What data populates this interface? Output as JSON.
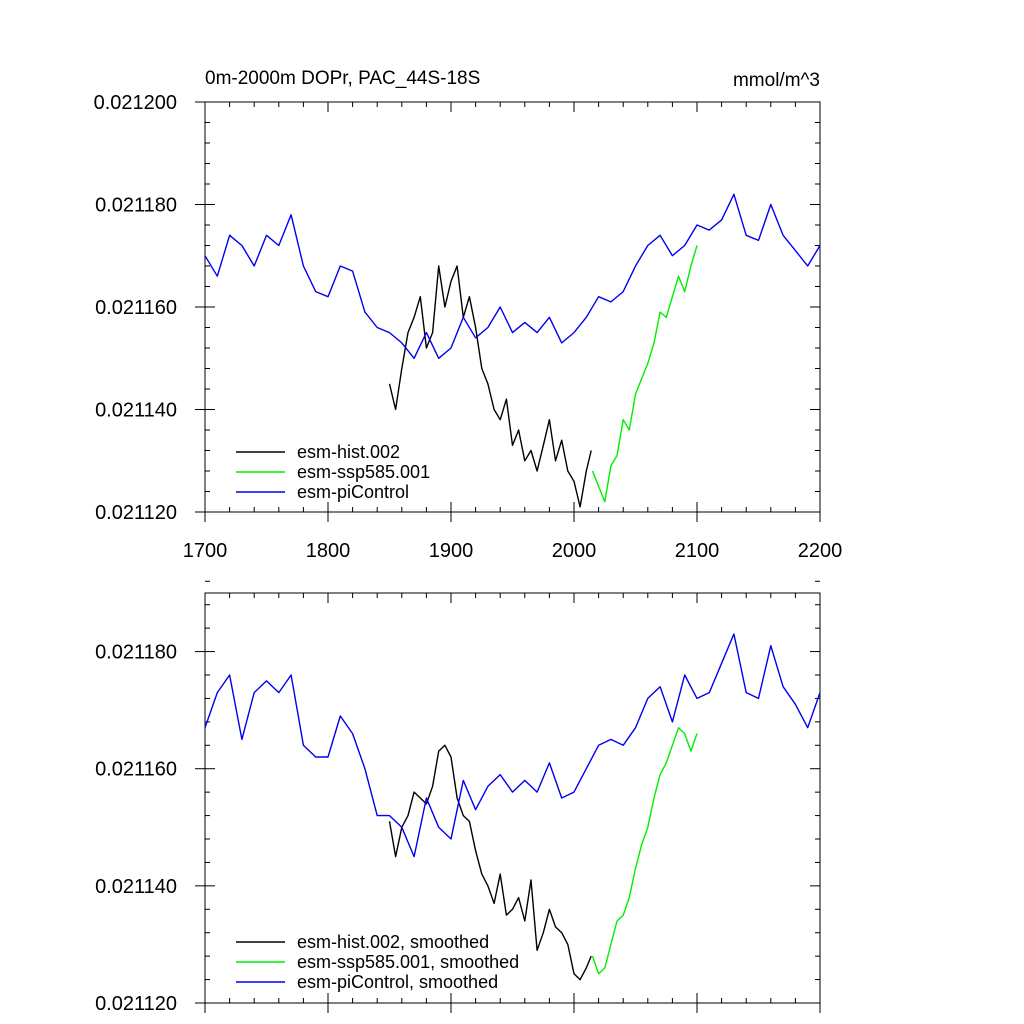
{
  "chart_data": [
    {
      "type": "line",
      "title": "0m-2000m DOPr, PAC_44S-18S",
      "units": "mmol/m^3",
      "xlim": [
        1700,
        2200
      ],
      "ylim": [
        0.02112,
        0.0212
      ],
      "x_ticks": [
        "1700",
        "1800",
        "1900",
        "2000",
        "2100",
        "2200"
      ],
      "y_ticks": [
        "0.021120",
        "0.021140",
        "0.021160",
        "0.021180",
        "0.021200"
      ],
      "grid": false,
      "legend_position": "bottom-left",
      "series": [
        {
          "name": "esm-hist.002",
          "color": "#000000",
          "x": [
            1850,
            1855,
            1860,
            1865,
            1870,
            1875,
            1880,
            1885,
            1890,
            1895,
            1900,
            1905,
            1910,
            1915,
            1920,
            1925,
            1930,
            1935,
            1940,
            1945,
            1950,
            1955,
            1960,
            1965,
            1970,
            1975,
            1980,
            1985,
            1990,
            1995,
            2000,
            2005,
            2010,
            2014
          ],
          "y": [
            0.021145,
            0.02114,
            0.021148,
            0.021155,
            0.021158,
            0.021162,
            0.021152,
            0.021155,
            0.021168,
            0.02116,
            0.021165,
            0.021168,
            0.021158,
            0.021162,
            0.021156,
            0.021148,
            0.021145,
            0.02114,
            0.021138,
            0.021142,
            0.021133,
            0.021136,
            0.02113,
            0.021132,
            0.021128,
            0.021133,
            0.021138,
            0.02113,
            0.021134,
            0.021128,
            0.021126,
            0.021121,
            0.021128,
            0.021132
          ]
        },
        {
          "name": "esm-ssp585.001",
          "color": "#00ee00",
          "x": [
            2015,
            2020,
            2025,
            2030,
            2035,
            2040,
            2045,
            2050,
            2055,
            2060,
            2065,
            2070,
            2075,
            2080,
            2085,
            2090,
            2095,
            2100
          ],
          "y": [
            0.021128,
            0.021125,
            0.021122,
            0.021129,
            0.021131,
            0.021138,
            0.021136,
            0.021143,
            0.021146,
            0.021149,
            0.021153,
            0.021159,
            0.021158,
            0.021162,
            0.021166,
            0.021163,
            0.021168,
            0.021172
          ]
        },
        {
          "name": "esm-piControl",
          "color": "#0000ee",
          "x": [
            1700,
            1710,
            1720,
            1730,
            1740,
            1750,
            1760,
            1770,
            1780,
            1790,
            1800,
            1810,
            1820,
            1830,
            1840,
            1850,
            1860,
            1870,
            1880,
            1890,
            1900,
            1910,
            1920,
            1930,
            1940,
            1950,
            1960,
            1970,
            1980,
            1990,
            2000,
            2010,
            2020,
            2030,
            2040,
            2050,
            2060,
            2070,
            2080,
            2090,
            2100,
            2110,
            2120,
            2130,
            2140,
            2150,
            2160,
            2170,
            2180,
            2190,
            2200
          ],
          "y": [
            0.02117,
            0.021166,
            0.021174,
            0.021172,
            0.021168,
            0.021174,
            0.021172,
            0.021178,
            0.021168,
            0.021163,
            0.021162,
            0.021168,
            0.021167,
            0.021159,
            0.021156,
            0.021155,
            0.021153,
            0.02115,
            0.021155,
            0.02115,
            0.021152,
            0.021158,
            0.021154,
            0.021156,
            0.02116,
            0.021155,
            0.021157,
            0.021155,
            0.021158,
            0.021153,
            0.021155,
            0.021158,
            0.021162,
            0.021161,
            0.021163,
            0.021168,
            0.021172,
            0.021174,
            0.02117,
            0.021172,
            0.021176,
            0.021175,
            0.021177,
            0.021182,
            0.021174,
            0.021173,
            0.02118,
            0.021174,
            0.021171,
            0.021168,
            0.021172
          ]
        }
      ]
    },
    {
      "type": "line",
      "title": "",
      "xlim": [
        1700,
        2200
      ],
      "ylim": [
        0.02112,
        0.02119
      ],
      "y_ticks": [
        "0.021120",
        "0.021140",
        "0.021160",
        "0.021180"
      ],
      "grid": false,
      "legend_position": "bottom-left",
      "series": [
        {
          "name": "esm-hist.002, smoothed",
          "color": "#000000",
          "x": [
            1850,
            1855,
            1860,
            1865,
            1870,
            1875,
            1880,
            1885,
            1890,
            1895,
            1900,
            1905,
            1910,
            1915,
            1920,
            1925,
            1930,
            1935,
            1940,
            1945,
            1950,
            1955,
            1960,
            1965,
            1970,
            1975,
            1980,
            1985,
            1990,
            1995,
            2000,
            2005,
            2010,
            2014
          ],
          "y": [
            0.021151,
            0.021145,
            0.02115,
            0.021152,
            0.021156,
            0.021155,
            0.021154,
            0.021157,
            0.021163,
            0.021164,
            0.021162,
            0.021155,
            0.021152,
            0.021151,
            0.021146,
            0.021142,
            0.02114,
            0.021137,
            0.021142,
            0.021135,
            0.021136,
            0.021138,
            0.021134,
            0.021141,
            0.021129,
            0.021132,
            0.021136,
            0.021133,
            0.021132,
            0.02113,
            0.021125,
            0.021124,
            0.021126,
            0.021128
          ]
        },
        {
          "name": "esm-ssp585.001, smoothed",
          "color": "#00ee00",
          "x": [
            2015,
            2020,
            2025,
            2030,
            2035,
            2040,
            2045,
            2050,
            2055,
            2060,
            2065,
            2070,
            2075,
            2080,
            2085,
            2090,
            2095,
            2100
          ],
          "y": [
            0.021128,
            0.021125,
            0.021126,
            0.02113,
            0.021134,
            0.021135,
            0.021138,
            0.021143,
            0.021147,
            0.02115,
            0.021155,
            0.021159,
            0.021161,
            0.021164,
            0.021167,
            0.021166,
            0.021163,
            0.021166
          ]
        },
        {
          "name": "esm-piControl, smoothed",
          "color": "#0000ee",
          "x": [
            1700,
            1710,
            1720,
            1730,
            1740,
            1750,
            1760,
            1770,
            1780,
            1790,
            1800,
            1810,
            1820,
            1830,
            1840,
            1850,
            1860,
            1870,
            1880,
            1890,
            1900,
            1910,
            1920,
            1930,
            1940,
            1950,
            1960,
            1970,
            1980,
            1990,
            2000,
            2010,
            2020,
            2030,
            2040,
            2050,
            2060,
            2070,
            2080,
            2090,
            2100,
            2110,
            2120,
            2130,
            2140,
            2150,
            2160,
            2170,
            2180,
            2190,
            2200
          ],
          "y": [
            0.021167,
            0.021173,
            0.021176,
            0.021165,
            0.021173,
            0.021175,
            0.021173,
            0.021176,
            0.021164,
            0.021162,
            0.021162,
            0.021169,
            0.021166,
            0.02116,
            0.021152,
            0.021152,
            0.02115,
            0.021145,
            0.021155,
            0.02115,
            0.021148,
            0.021158,
            0.021153,
            0.021157,
            0.021159,
            0.021156,
            0.021158,
            0.021156,
            0.021161,
            0.021155,
            0.021156,
            0.02116,
            0.021164,
            0.021165,
            0.021164,
            0.021167,
            0.021172,
            0.021174,
            0.021168,
            0.021176,
            0.021172,
            0.021173,
            0.021178,
            0.021183,
            0.021173,
            0.021172,
            0.021181,
            0.021174,
            0.021171,
            0.021167,
            0.021173
          ]
        }
      ]
    }
  ]
}
